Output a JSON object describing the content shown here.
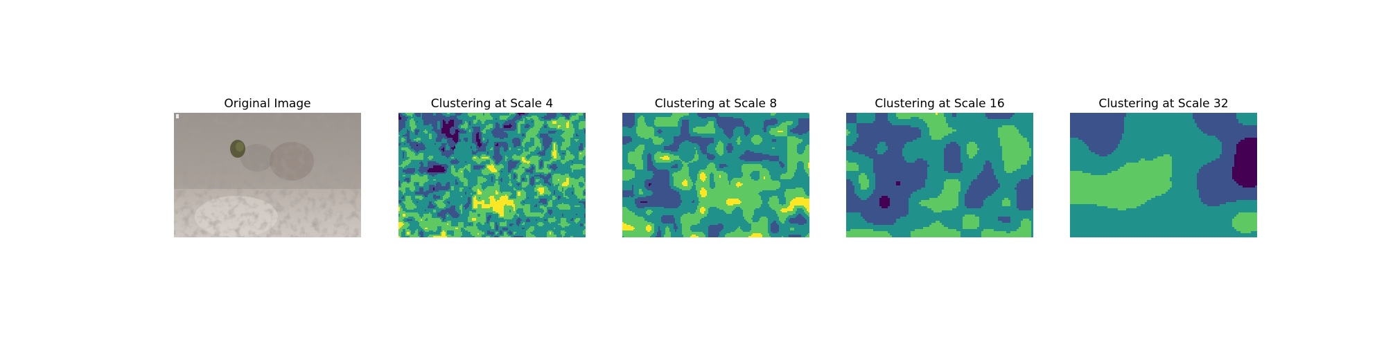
{
  "panels": [
    {
      "title": "Original Image",
      "kind": "photo",
      "image_name": "original-image"
    },
    {
      "title": "Clustering at Scale 4",
      "kind": "clusters",
      "scale": 4,
      "image_name": "cluster-map-scale-4"
    },
    {
      "title": "Clustering at Scale 8",
      "kind": "clusters",
      "scale": 8,
      "image_name": "cluster-map-scale-8"
    },
    {
      "title": "Clustering at Scale 16",
      "kind": "clusters",
      "scale": 16,
      "image_name": "cluster-map-scale-16"
    },
    {
      "title": "Clustering at Scale 32",
      "kind": "clusters",
      "scale": 32,
      "image_name": "cluster-map-scale-32"
    }
  ],
  "colormap": [
    "#440154",
    "#3b528b",
    "#21918c",
    "#5ec962",
    "#fde725"
  ]
}
